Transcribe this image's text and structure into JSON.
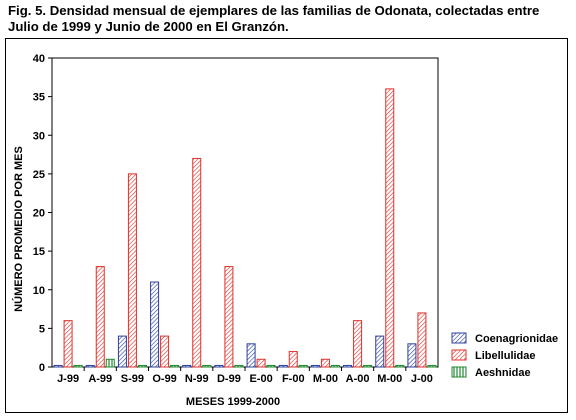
{
  "caption": {
    "line1": "Fig. 5. Densidad mensual de ejemplares de las familias de Odonata, colectadas  entre",
    "line2": "Julio de 1999 y Junio de 2000 en El Granzón."
  },
  "chart_data": {
    "type": "bar",
    "xlabel": "MESES 1999-2000",
    "ylabel": "NÚMERO PROMEDIO POR MES",
    "ylim": [
      0,
      40
    ],
    "yticks": [
      0,
      5,
      10,
      15,
      20,
      25,
      30,
      35,
      40
    ],
    "grid": false,
    "legend_position": "bottom-right",
    "categories": [
      "J-99",
      "A-99",
      "S-99",
      "O-99",
      "N-99",
      "D-99",
      "E-00",
      "F-00",
      "M-00",
      "A-00",
      "M-00",
      "J-00"
    ],
    "series": [
      {
        "name": "Coenagrionidae",
        "color": "#2c3f9e",
        "values": [
          0.2,
          0.2,
          4,
          11,
          0.2,
          0.2,
          3,
          0.2,
          0.2,
          0.2,
          4,
          3
        ]
      },
      {
        "name": "Libellulidae",
        "color": "#e0302a",
        "values": [
          6,
          13,
          25,
          4,
          27,
          13,
          1,
          2,
          1,
          6,
          36,
          7
        ]
      },
      {
        "name": "Aeshnidae",
        "color": "#1f8a2e",
        "values": [
          0.2,
          1,
          0.2,
          0.2,
          0.2,
          0.2,
          0.2,
          0.2,
          0.2,
          0.2,
          0.2,
          0.2
        ]
      }
    ]
  }
}
